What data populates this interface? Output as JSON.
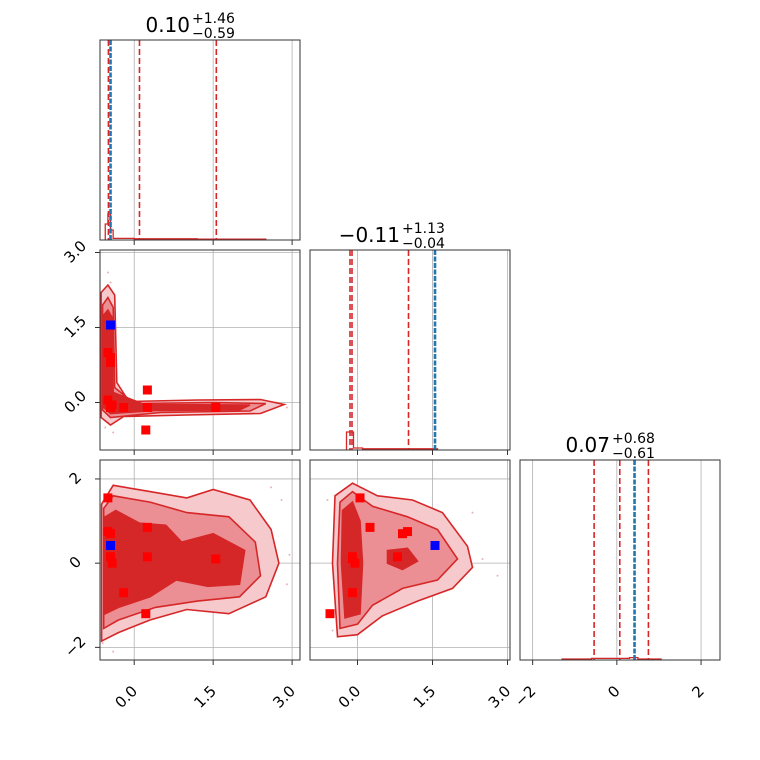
{
  "chart_data": {
    "type": "corner",
    "parameters": [
      {
        "title_value": "0.10",
        "title_plus": "+1.46",
        "title_minus": "−0.59",
        "range": [
          -0.65,
          3.15
        ],
        "ticks": [
          0.0,
          1.5,
          3.0
        ],
        "tick_labels": [
          "0.0",
          "1.5",
          "3.0"
        ],
        "quantiles": [
          -0.49,
          0.1,
          1.56
        ],
        "truth": -0.45
      },
      {
        "title_value": "−0.11",
        "title_plus": "+1.13",
        "title_minus": "−0.04",
        "range": [
          -0.95,
          3.05
        ],
        "ticks": [
          0.0,
          1.5,
          3.0
        ],
        "tick_labels": [
          "0.0",
          "1.5",
          "3.0"
        ],
        "quantiles": [
          -0.15,
          -0.11,
          1.02
        ],
        "truth": 1.55
      },
      {
        "title_value": "0.07",
        "title_plus": "+0.68",
        "title_minus": "−0.61",
        "range": [
          -2.3,
          2.45
        ],
        "ticks": [
          -2,
          0,
          2
        ],
        "tick_labels": [
          "−2",
          "0",
          "2"
        ],
        "quantiles": [
          -0.54,
          0.07,
          0.75
        ],
        "truth": 0.42
      }
    ],
    "red_markers": {
      "p1": [
        -0.5,
        -0.45,
        -0.5,
        -0.42,
        -0.45,
        0.25,
        0.25,
        0.22,
        -0.2,
        1.55,
        -0.45
      ],
      "p2": [
        1.0,
        0.8,
        0.05,
        -0.05,
        -0.1,
        0.25,
        -0.1,
        -0.55,
        -0.1,
        -0.1,
        0.9
      ],
      "p3": [
        0.75,
        0.15,
        1.55,
        0.0,
        0.15,
        0.85,
        0.15,
        -1.2,
        -0.7,
        0.1,
        0.7
      ]
    },
    "blue_marker": {
      "p1": -0.45,
      "p2": 1.55,
      "p3": 0.42
    },
    "colors": {
      "primary": "#d62728",
      "truth": "#1f77b4",
      "marker_red": "#ff0000",
      "marker_blue": "#0000ff",
      "light_fill": "#f6c9cc",
      "mid_fill": "#ec8f94",
      "grid": "#b0b0b0"
    },
    "grid": true
  }
}
